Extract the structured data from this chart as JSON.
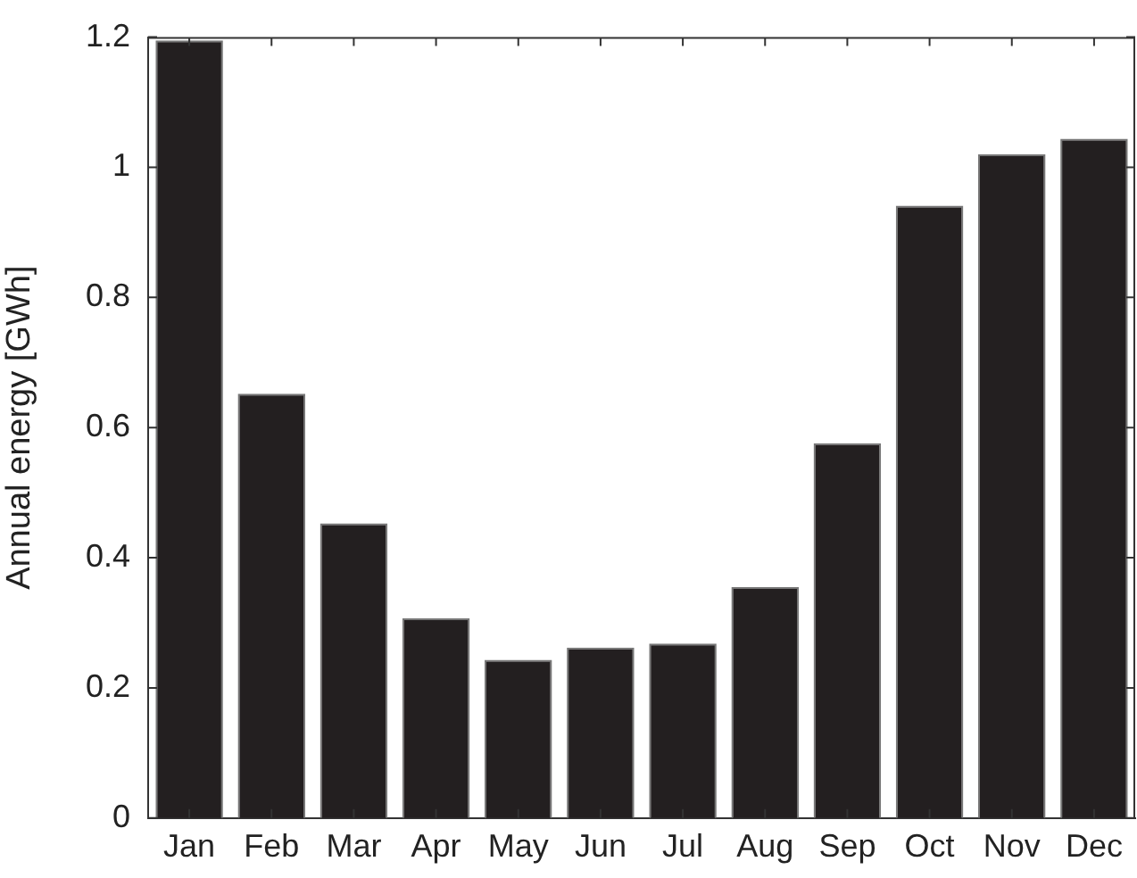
{
  "chart_data": {
    "type": "bar",
    "ylabel": "Annual energy [GWh]",
    "categories": [
      "Jan",
      "Feb",
      "Mar",
      "Apr",
      "May",
      "Jun",
      "Jul",
      "Aug",
      "Sep",
      "Oct",
      "Nov",
      "Dec"
    ],
    "values": [
      1.195,
      0.652,
      0.453,
      0.307,
      0.243,
      0.262,
      0.268,
      0.355,
      0.576,
      0.941,
      1.02,
      1.044
    ],
    "color": "#231f20",
    "ylim": [
      0,
      1.2
    ],
    "yticks": [
      0,
      0.2,
      0.4,
      0.6,
      0.8,
      1,
      1.2
    ],
    "grid": false,
    "legend": false
  }
}
